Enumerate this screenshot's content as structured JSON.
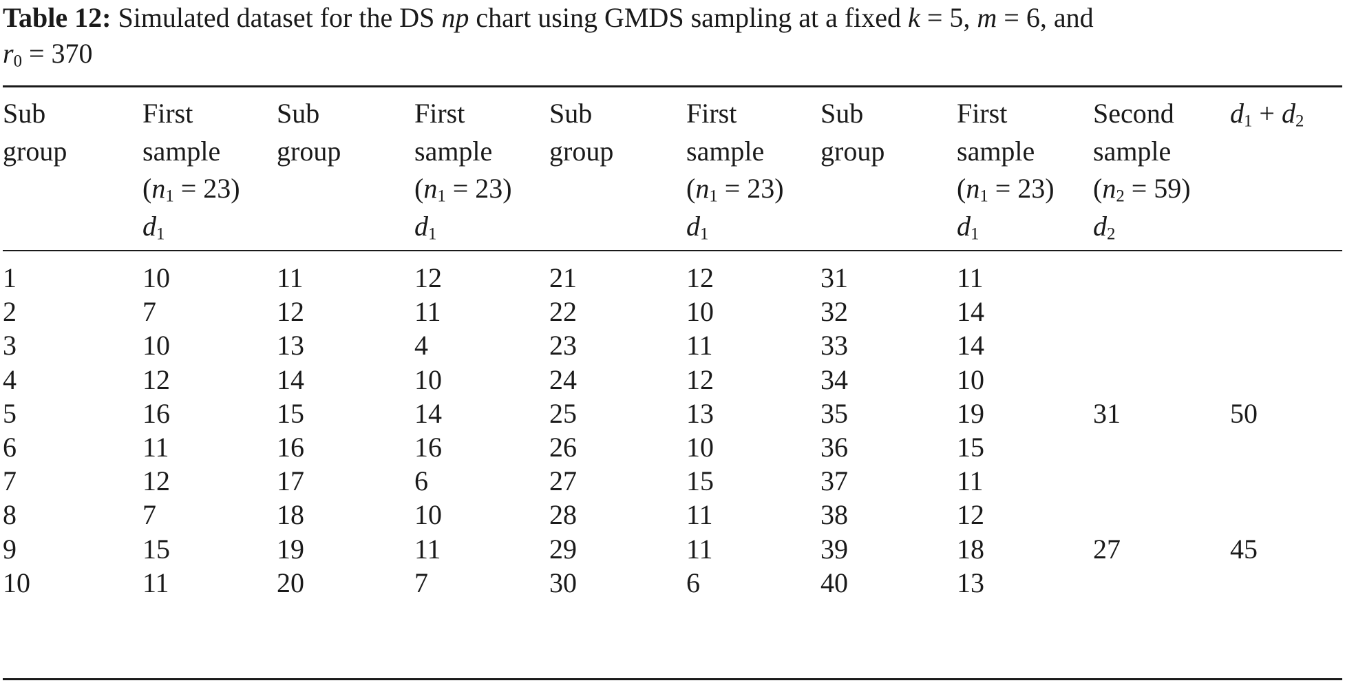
{
  "caption": {
    "label": "Table 12:",
    "text_part1": "Simulated dataset for the DS",
    "np": "np",
    "text_part2": "chart using GMDS sampling at a fixed",
    "k_var": "k",
    "k_val": "= 5,",
    "m_var": "m",
    "m_val": "= 6, and",
    "r_var": "r",
    "r_sub": "0",
    "r_val": "= 370"
  },
  "headers": {
    "subgroup_line1": "Sub",
    "subgroup_line2": "group",
    "first_line1": "First",
    "first_line2": "sample",
    "n1_open": "(",
    "n1_var": "n",
    "n1_sub": "1",
    "n1_close": " = 23)",
    "d1_var": "d",
    "d1_sub": "1",
    "second_line1": "Second",
    "second_line2": "sample",
    "n2_open": "(",
    "n2_var": "n",
    "n2_sub": "2",
    "n2_close": " = 59)",
    "d2_var": "d",
    "d2_sub": "2",
    "sum_d1": "d",
    "sum_s1": "1",
    "sum_plus": " + ",
    "sum_d2": "d",
    "sum_s2": "2"
  },
  "rows": [
    [
      "1",
      "10",
      "11",
      "12",
      "21",
      "12",
      "31",
      "11",
      "",
      ""
    ],
    [
      "2",
      "7",
      "12",
      "11",
      "22",
      "10",
      "32",
      "14",
      "",
      ""
    ],
    [
      "3",
      "10",
      "13",
      "4",
      "23",
      "11",
      "33",
      "14",
      "",
      ""
    ],
    [
      "4",
      "12",
      "14",
      "10",
      "24",
      "12",
      "34",
      "10",
      "",
      ""
    ],
    [
      "5",
      "16",
      "15",
      "14",
      "25",
      "13",
      "35",
      "19",
      "31",
      "50"
    ],
    [
      "6",
      "11",
      "16",
      "16",
      "26",
      "10",
      "36",
      "15",
      "",
      ""
    ],
    [
      "7",
      "12",
      "17",
      "6",
      "27",
      "15",
      "37",
      "11",
      "",
      ""
    ],
    [
      "8",
      "7",
      "18",
      "10",
      "28",
      "11",
      "38",
      "12",
      "",
      ""
    ],
    [
      "9",
      "15",
      "19",
      "11",
      "29",
      "11",
      "39",
      "18",
      "27",
      "45"
    ],
    [
      "10",
      "11",
      "20",
      "7",
      "30",
      "6",
      "40",
      "13",
      "",
      ""
    ]
  ]
}
